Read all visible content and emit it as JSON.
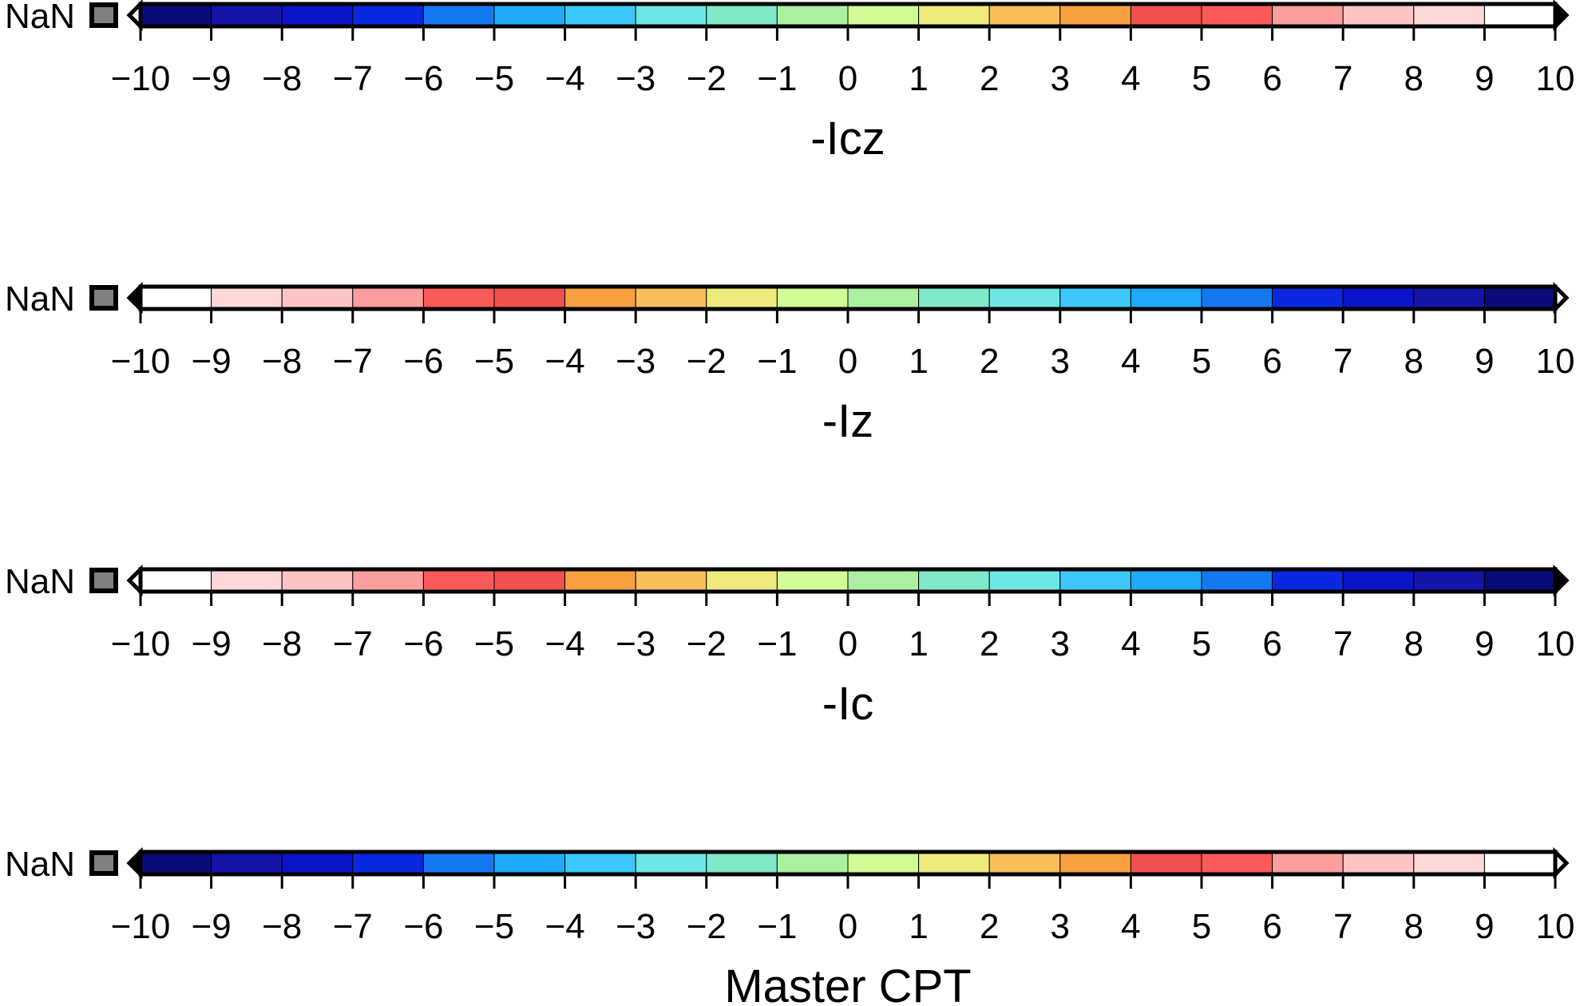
{
  "chart_data": {
    "type": "colorbar",
    "ticks": [
      "−10",
      "−9",
      "−8",
      "−7",
      "−6",
      "−5",
      "−4",
      "−3",
      "−2",
      "−1",
      "0",
      "1",
      "2",
      "3",
      "4",
      "5",
      "6",
      "7",
      "8",
      "9",
      "10"
    ],
    "xlim": [
      -10,
      10
    ],
    "nan": {
      "label": "NaN",
      "color": "#808080"
    },
    "master_colors": [
      "#0a0a78",
      "#1414a8",
      "#0a14c8",
      "#0a28e0",
      "#1478f0",
      "#1eaaf8",
      "#3cc8fa",
      "#6ee6e6",
      "#7ee8c8",
      "#aaf0a0",
      "#d2fa96",
      "#eeeb7c",
      "#f8be5a",
      "#f8a040",
      "#f05050",
      "#fa5a5a",
      "#fa9e9e",
      "#fcc4c4",
      "#fcd8d8",
      "#ffffff"
    ],
    "bars": [
      {
        "title": "-Icz",
        "reversed": false,
        "left_end": {
          "filled": false
        },
        "right_end": {
          "filled": true
        }
      },
      {
        "title": "-Iz",
        "reversed": true,
        "left_end": {
          "filled": true
        },
        "right_end": {
          "filled": false
        }
      },
      {
        "title": "-Ic",
        "reversed": true,
        "left_end": {
          "filled": false
        },
        "right_end": {
          "filled": true
        }
      },
      {
        "title": "Master CPT",
        "reversed": false,
        "left_end": {
          "filled": true
        },
        "right_end": {
          "filled": false
        }
      }
    ]
  }
}
